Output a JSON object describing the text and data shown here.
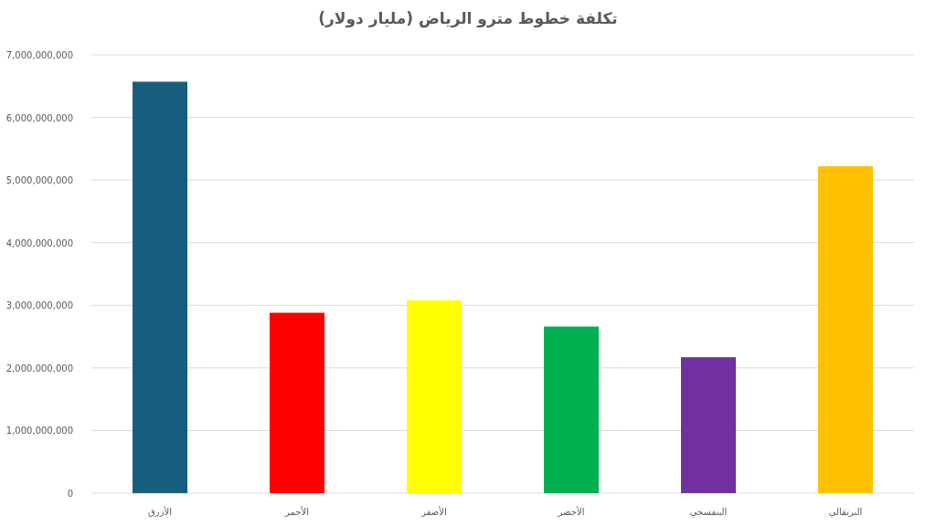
{
  "chart_data": {
    "type": "bar",
    "title": "تكلفة خطوط مترو الرياض (مليار دولار)",
    "categories": [
      "الأزرق",
      "الأحمر",
      "الأصفر",
      "الأخضر",
      "البنفسجي",
      "البرتقالي"
    ],
    "values": [
      6570000000,
      2880000000,
      3080000000,
      2660000000,
      2170000000,
      5220000000
    ],
    "colors": [
      "#175e7e",
      "#ff0000",
      "#ffff00",
      "#00b050",
      "#7030a0",
      "#ffc000"
    ],
    "ylim": [
      0,
      7000000000
    ],
    "yticks": [
      0,
      {
        "value": 1000000000,
        "label": "1,000,000,000"
      },
      {
        "value": 2000000000,
        "label": "2,000,000,000"
      },
      {
        "value": 3000000000,
        "label": "3,000,000,000"
      },
      {
        "value": 4000000000,
        "label": "4,000,000,000"
      },
      {
        "value": 5000000000,
        "label": "5,000,000,000"
      },
      {
        "value": 6000000000,
        "label": "6,000,000,000"
      },
      {
        "value": 7000000000,
        "label": "7,000,000,000"
      }
    ],
    "grid": "y"
  }
}
